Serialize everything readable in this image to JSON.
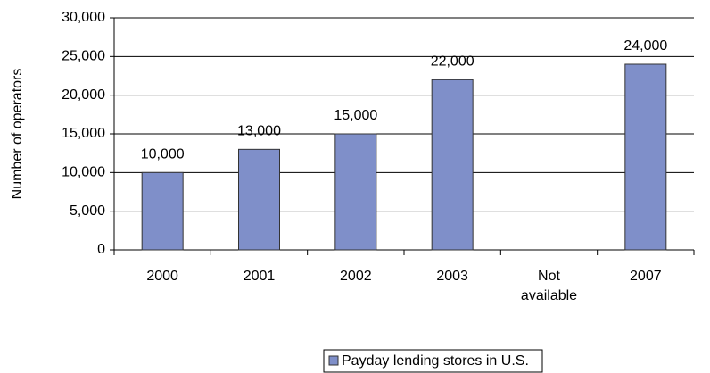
{
  "chart_data": {
    "type": "bar",
    "y_label": "Number of operators",
    "categories": [
      "2000",
      "2001",
      "2002",
      "2003",
      "Not available",
      "2007"
    ],
    "series": [
      {
        "name": "Payday lending stores in U.S.",
        "color": "#7f8fc9",
        "values": [
          10000,
          13000,
          15000,
          22000,
          null,
          24000
        ],
        "value_labels": [
          "10,000",
          "13,000",
          "15,000",
          "22,000",
          null,
          "24,000"
        ]
      }
    ],
    "ylim": [
      0,
      30000
    ],
    "yticks": [
      0,
      {
        "value": 5000,
        "label": "5,000"
      },
      {
        "value": 10000,
        "label": "10,000"
      },
      {
        "value": 15000,
        "label": "15,000"
      },
      {
        "value": 20000,
        "label": "20,000"
      },
      {
        "value": 25000,
        "label": "25,000"
      },
      {
        "value": 30000,
        "label": "30,000"
      }
    ],
    "grid": true,
    "legend": "bottom"
  }
}
